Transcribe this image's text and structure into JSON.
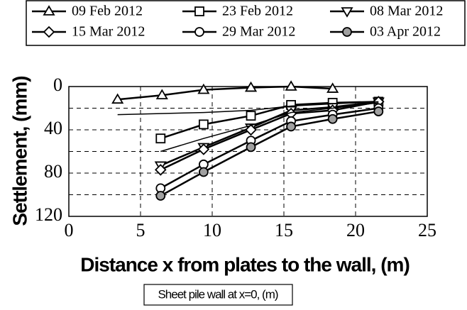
{
  "chart_data": {
    "type": "line",
    "xlabel": "Distance x from plates to the wall, (m)",
    "ylabel": "Settlement, (mm)",
    "annotation": "Sheet pile wall at x=0, (m)",
    "xlim": [
      0,
      25
    ],
    "xticks": [
      0,
      5,
      10,
      15,
      20,
      25
    ],
    "ylim": [
      0,
      120
    ],
    "y_inverted": true,
    "yticks": [
      0,
      40,
      80,
      120
    ],
    "yminor": [
      20,
      60,
      100
    ],
    "grid": true,
    "legend": "top",
    "series": [
      {
        "name": "09 Feb 2012",
        "marker": "triangle-up",
        "marker_fill": "#ffffff",
        "color": "#000000",
        "x": [
          3.4,
          6.5,
          9.4,
          12.7,
          15.5,
          18.4
        ],
        "values": [
          12,
          8,
          3,
          1,
          0,
          2
        ]
      },
      {
        "name": "23 Feb 2012",
        "marker": "square",
        "marker_fill": "#ffffff",
        "color": "#000000",
        "x": [
          6.4,
          9.4,
          12.7,
          15.5,
          18.4,
          21.6
        ],
        "values": [
          48,
          35,
          27,
          17,
          15,
          14
        ]
      },
      {
        "name": "08 Mar 2012",
        "marker": "triangle-down",
        "marker_fill": "#ffffff",
        "color": "#000000",
        "x": [
          6.4,
          9.4,
          12.7,
          15.5,
          18.4,
          21.6
        ],
        "values": [
          73,
          56,
          38,
          22,
          19,
          14
        ]
      },
      {
        "name": "15 Mar 2012",
        "marker": "diamond",
        "marker_fill": "#ffffff",
        "color": "#000000",
        "x": [
          6.4,
          9.4,
          12.7,
          15.5,
          18.4,
          21.6
        ],
        "values": [
          77,
          58,
          40,
          25,
          22,
          14
        ]
      },
      {
        "name": "29 Mar 2012",
        "marker": "circle",
        "marker_fill": "#ffffff",
        "color": "#000000",
        "x": [
          6.4,
          9.4,
          12.7,
          15.5,
          18.4,
          21.6
        ],
        "values": [
          94,
          72,
          50,
          32,
          26,
          20
        ]
      },
      {
        "name": "03 Apr 2012",
        "marker": "circle",
        "marker_fill": "#a0a0a0",
        "color": "#000000",
        "x": [
          6.4,
          9.4,
          12.7,
          15.5,
          18.4,
          21.6
        ],
        "values": [
          101,
          79,
          56,
          37,
          30,
          23
        ]
      },
      {
        "color": "#000000",
        "x": [
          3.4,
          9.4,
          12.7,
          15.5,
          18.4,
          21.6
        ],
        "values": [
          26,
          24,
          22,
          18,
          16,
          14
        ]
      },
      {
        "color": "#000000",
        "x": [
          6.4,
          9.4,
          12.7,
          15.5,
          18.4,
          21.6
        ],
        "values": [
          60,
          48,
          36,
          24,
          20,
          15
        ]
      }
    ]
  }
}
